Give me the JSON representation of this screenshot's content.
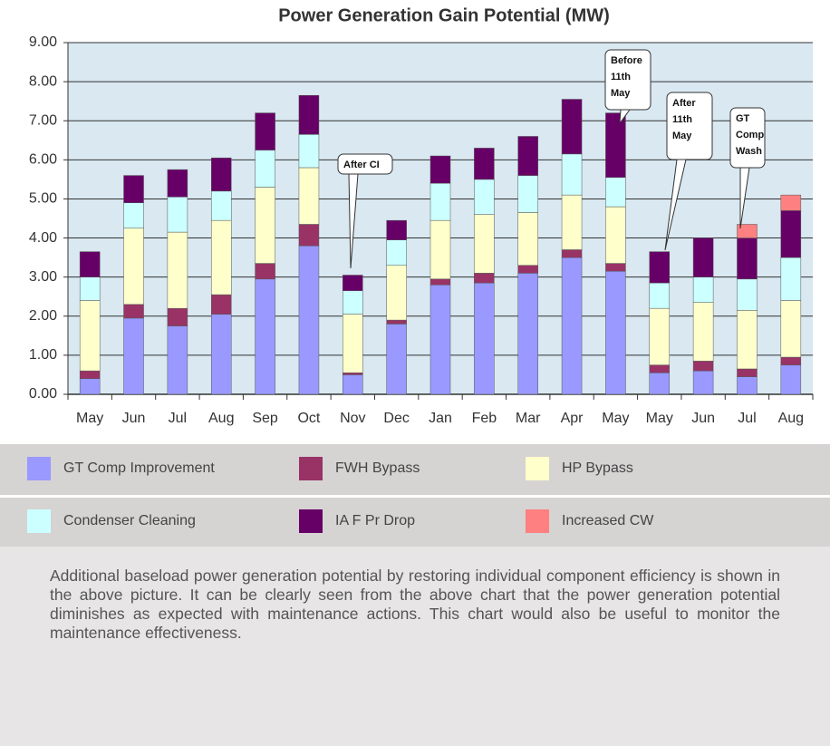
{
  "chart_data": {
    "type": "stacked_bar",
    "title": "Power Generation Gain Potential (MW)",
    "categories": [
      "May",
      "Jun",
      "Jul",
      "Aug",
      "Sep",
      "Oct",
      "Nov",
      "Dec",
      "Jan",
      "Feb",
      "Mar",
      "Apr",
      "May",
      "May",
      "Jun",
      "Jul",
      "Aug"
    ],
    "series": [
      {
        "name": "GT Comp Improvement",
        "color": "#9999ff",
        "values": [
          0.4,
          1.95,
          1.75,
          2.05,
          2.95,
          3.8,
          0.5,
          1.8,
          2.8,
          2.85,
          3.1,
          3.5,
          3.15,
          0.55,
          0.6,
          0.45,
          0.75
        ]
      },
      {
        "name": "FWH Bypass",
        "color": "#993366",
        "values": [
          0.2,
          0.35,
          0.45,
          0.5,
          0.4,
          0.55,
          0.05,
          0.1,
          0.15,
          0.25,
          0.2,
          0.2,
          0.2,
          0.2,
          0.25,
          0.2,
          0.2
        ]
      },
      {
        "name": "HP Bypass",
        "color": "#ffffcc",
        "values": [
          1.8,
          1.95,
          1.95,
          1.9,
          1.95,
          1.45,
          1.5,
          1.4,
          1.5,
          1.5,
          1.35,
          1.4,
          1.45,
          1.45,
          1.5,
          1.5,
          1.45
        ]
      },
      {
        "name": "Condenser Cleaning",
        "color": "#ccffff",
        "values": [
          0.6,
          0.65,
          0.9,
          0.75,
          0.95,
          0.85,
          0.6,
          0.65,
          0.95,
          0.9,
          0.95,
          1.05,
          0.75,
          0.65,
          0.65,
          0.8,
          1.1
        ]
      },
      {
        "name": "IA F Pr Drop",
        "color": "#660066",
        "values": [
          0.65,
          0.7,
          0.7,
          0.85,
          0.95,
          1.0,
          0.4,
          0.5,
          0.7,
          0.8,
          1.0,
          1.4,
          1.65,
          0.8,
          1.0,
          1.05,
          1.2
        ]
      },
      {
        "name": "Increased CW",
        "color": "#ff8080",
        "values": [
          0,
          0,
          0,
          0,
          0,
          0,
          0,
          0,
          0,
          0,
          0,
          0,
          0,
          0,
          0,
          0.35,
          0.4
        ]
      }
    ],
    "ylim": [
      0,
      9
    ],
    "yticks": [
      {
        "value": 0,
        "label": "0.00"
      },
      {
        "value": 1,
        "label": "1.00"
      },
      {
        "value": 2,
        "label": "2.00"
      },
      {
        "value": 3,
        "label": "3.00"
      },
      {
        "value": 4,
        "label": "4.00"
      },
      {
        "value": 5,
        "label": "5.00"
      },
      {
        "value": 6,
        "label": "6.00"
      },
      {
        "value": 7,
        "label": "7.00"
      },
      {
        "value": 8,
        "label": "8.00"
      },
      {
        "value": 9,
        "label": "9.00"
      }
    ],
    "grid": true,
    "annotations": [
      {
        "lines": [
          "After CI"
        ]
      },
      {
        "lines": [
          "Before",
          "11th",
          "May"
        ]
      },
      {
        "lines": [
          "After",
          "11th",
          "May"
        ]
      },
      {
        "lines": [
          "GT",
          "Comp",
          "Wash"
        ]
      }
    ]
  },
  "paragraph": "Additional baseload power generation potential by restoring individual component efficiency is shown in the above picture. It can be clearly seen from the above chart that the power generation potential diminishes as expected with maintenance actions. This chart would also be useful to monitor the maintenance effectiveness."
}
